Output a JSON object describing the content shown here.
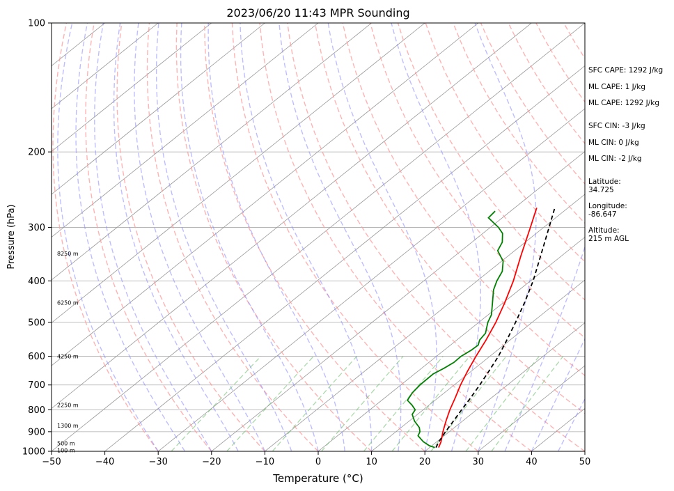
{
  "chart_data": {
    "type": "line",
    "title": "2023/06/20 11:43 MPR Sounding",
    "xlabel": "Temperature (°C)",
    "ylabel": "Pressure (hPa)",
    "xlim": [
      -50,
      50
    ],
    "ylim": [
      1000,
      100
    ],
    "y_scale": "log",
    "skew_t": true,
    "grid": true,
    "x_ticks": [
      "−50",
      "−40",
      "−30",
      "−20",
      "−10",
      "0",
      "10",
      "20",
      "30",
      "40",
      "50"
    ],
    "y_ticks": [
      "100",
      "200",
      "300",
      "400",
      "500",
      "600",
      "700",
      "800",
      "900",
      "1000"
    ],
    "height_labels": [
      {
        "pressure": 345,
        "text": "8250 m"
      },
      {
        "pressure": 450,
        "text": "6250 m"
      },
      {
        "pressure": 600,
        "text": "4250 m"
      },
      {
        "pressure": 780,
        "text": "2250 m"
      },
      {
        "pressure": 870,
        "text": "1300 m"
      },
      {
        "pressure": 958,
        "text": "500 m"
      },
      {
        "pressure": 995,
        "text": "100 m"
      }
    ],
    "series": [
      {
        "color": "#ff0000",
        "style": "solid",
        "points": [
          {
            "p": 980,
            "t": 21.7
          },
          {
            "p": 950,
            "t": 20.8
          },
          {
            "p": 900,
            "t": 18.8
          },
          {
            "p": 850,
            "t": 16.9
          },
          {
            "p": 800,
            "t": 15.0
          },
          {
            "p": 750,
            "t": 13.2
          },
          {
            "p": 700,
            "t": 11.2
          },
          {
            "p": 650,
            "t": 9.3
          },
          {
            "p": 600,
            "t": 7.4
          },
          {
            "p": 550,
            "t": 5.5
          },
          {
            "p": 500,
            "t": 3.2
          },
          {
            "p": 450,
            "t": 0.3
          },
          {
            "p": 400,
            "t": -3.2
          },
          {
            "p": 350,
            "t": -7.6
          },
          {
            "p": 300,
            "t": -12.5
          },
          {
            "p": 270,
            "t": -15.9
          }
        ]
      },
      {
        "color": "#008000",
        "style": "solid",
        "points": [
          {
            "p": 980,
            "t": 21.0
          },
          {
            "p": 970,
            "t": 19.5
          },
          {
            "p": 950,
            "t": 17.5
          },
          {
            "p": 920,
            "t": 15.1
          },
          {
            "p": 900,
            "t": 14.5
          },
          {
            "p": 880,
            "t": 13.4
          },
          {
            "p": 850,
            "t": 11.0
          },
          {
            "p": 820,
            "t": 9.0
          },
          {
            "p": 800,
            "t": 8.5
          },
          {
            "p": 780,
            "t": 6.8
          },
          {
            "p": 760,
            "t": 4.8
          },
          {
            "p": 730,
            "t": 4.0
          },
          {
            "p": 700,
            "t": 3.6
          },
          {
            "p": 660,
            "t": 3.5
          },
          {
            "p": 640,
            "t": 4.2
          },
          {
            "p": 620,
            "t": 4.7
          },
          {
            "p": 600,
            "t": 4.6
          },
          {
            "p": 580,
            "t": 5.1
          },
          {
            "p": 565,
            "t": 5.2
          },
          {
            "p": 550,
            "t": 4.3
          },
          {
            "p": 530,
            "t": 3.8
          },
          {
            "p": 500,
            "t": 1.7
          },
          {
            "p": 480,
            "t": 0.6
          },
          {
            "p": 450,
            "t": -2.0
          },
          {
            "p": 420,
            "t": -4.8
          },
          {
            "p": 400,
            "t": -6.3
          },
          {
            "p": 380,
            "t": -7.5
          },
          {
            "p": 360,
            "t": -9.7
          },
          {
            "p": 340,
            "t": -13.2
          },
          {
            "p": 325,
            "t": -14.3
          },
          {
            "p": 310,
            "t": -16.3
          },
          {
            "p": 300,
            "t": -18.5
          },
          {
            "p": 285,
            "t": -22.6
          },
          {
            "p": 275,
            "t": -22.9
          }
        ]
      },
      {
        "color": "#000000",
        "style": "dashed",
        "points": [
          {
            "p": 980,
            "t": 21.2
          },
          {
            "p": 950,
            "t": 20.4
          },
          {
            "p": 900,
            "t": 19.3
          },
          {
            "p": 850,
            "t": 18.3
          },
          {
            "p": 800,
            "t": 17.2
          },
          {
            "p": 750,
            "t": 16.1
          },
          {
            "p": 700,
            "t": 14.8
          },
          {
            "p": 650,
            "t": 13.3
          },
          {
            "p": 600,
            "t": 11.6
          },
          {
            "p": 550,
            "t": 9.4
          },
          {
            "p": 500,
            "t": 6.9
          },
          {
            "p": 450,
            "t": 4.0
          },
          {
            "p": 400,
            "t": 0.5
          },
          {
            "p": 350,
            "t": -3.9
          },
          {
            "p": 300,
            "t": -9.0
          },
          {
            "p": 270,
            "t": -12.5
          }
        ]
      }
    ]
  },
  "stats": {
    "sfc_cape": "SFC CAPE: 1292 J/kg",
    "ml_cape_1": "ML CAPE: 1 J/kg",
    "ml_cape_2": "ML CAPE: 1292 J/kg",
    "sfc_cin": "SFC CIN: -3 J/kg",
    "ml_cin_1": "ML CIN: 0 J/kg",
    "ml_cin_2": "ML CIN: -2 J/kg",
    "latitude_label": "Latitude:",
    "latitude_value": "34.725",
    "longitude_label": "Longitude:",
    "longitude_value": "-86.647",
    "altitude_label": "Altitude:",
    "altitude_value": "215 m AGL"
  },
  "colors": {
    "dry_adiabat": "#ff9a9a",
    "moist_adiabat": "#8888ff",
    "mixing_ratio": "#66bb66",
    "isotherm": "#999999",
    "isobar": "#aaaaaa"
  }
}
